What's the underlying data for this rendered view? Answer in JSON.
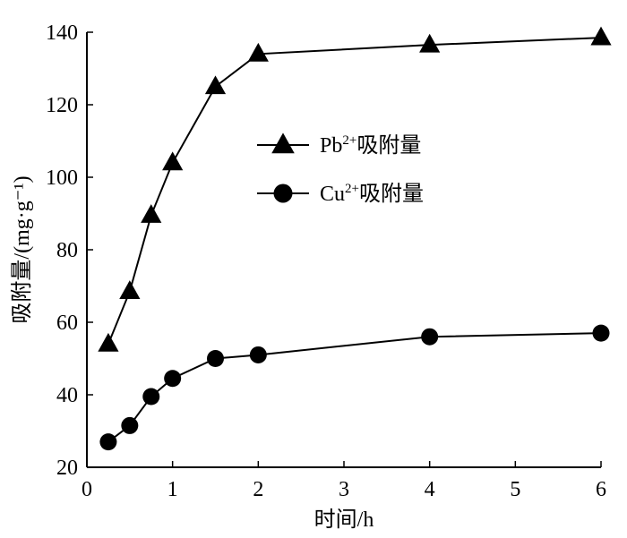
{
  "chart_data": {
    "type": "line",
    "title": "",
    "xlabel": "时间/h",
    "ylabel": "吸附量/(mg·g⁻¹)",
    "xlim": [
      0,
      6
    ],
    "ylim": [
      20,
      140
    ],
    "xticks": [
      "0",
      "1",
      "2",
      "3",
      "4",
      "5",
      "6"
    ],
    "yticks": [
      "20",
      "40",
      "60",
      "80",
      "100",
      "120",
      "140"
    ],
    "grid": false,
    "legend": "center",
    "series": [
      {
        "name": "Pb²⁺吸附量",
        "legend_base": "Pb",
        "legend_sup": "2+",
        "legend_suffix": "吸附量",
        "marker": "triangle",
        "color": "#000000",
        "x": [
          0.25,
          0.5,
          0.75,
          1.0,
          1.5,
          2.0,
          4.0,
          6.0
        ],
        "y": [
          54,
          68.5,
          89.5,
          104,
          125,
          134,
          136.5,
          138.5
        ]
      },
      {
        "name": "Cu²⁺吸附量",
        "legend_base": "Cu",
        "legend_sup": "2+",
        "legend_suffix": "吸附量",
        "marker": "circle",
        "color": "#000000",
        "x": [
          0.25,
          0.5,
          0.75,
          1.0,
          1.5,
          2.0,
          4.0,
          6.0
        ],
        "y": [
          27,
          31.5,
          39.5,
          44.5,
          50,
          51,
          56,
          57
        ]
      }
    ]
  }
}
